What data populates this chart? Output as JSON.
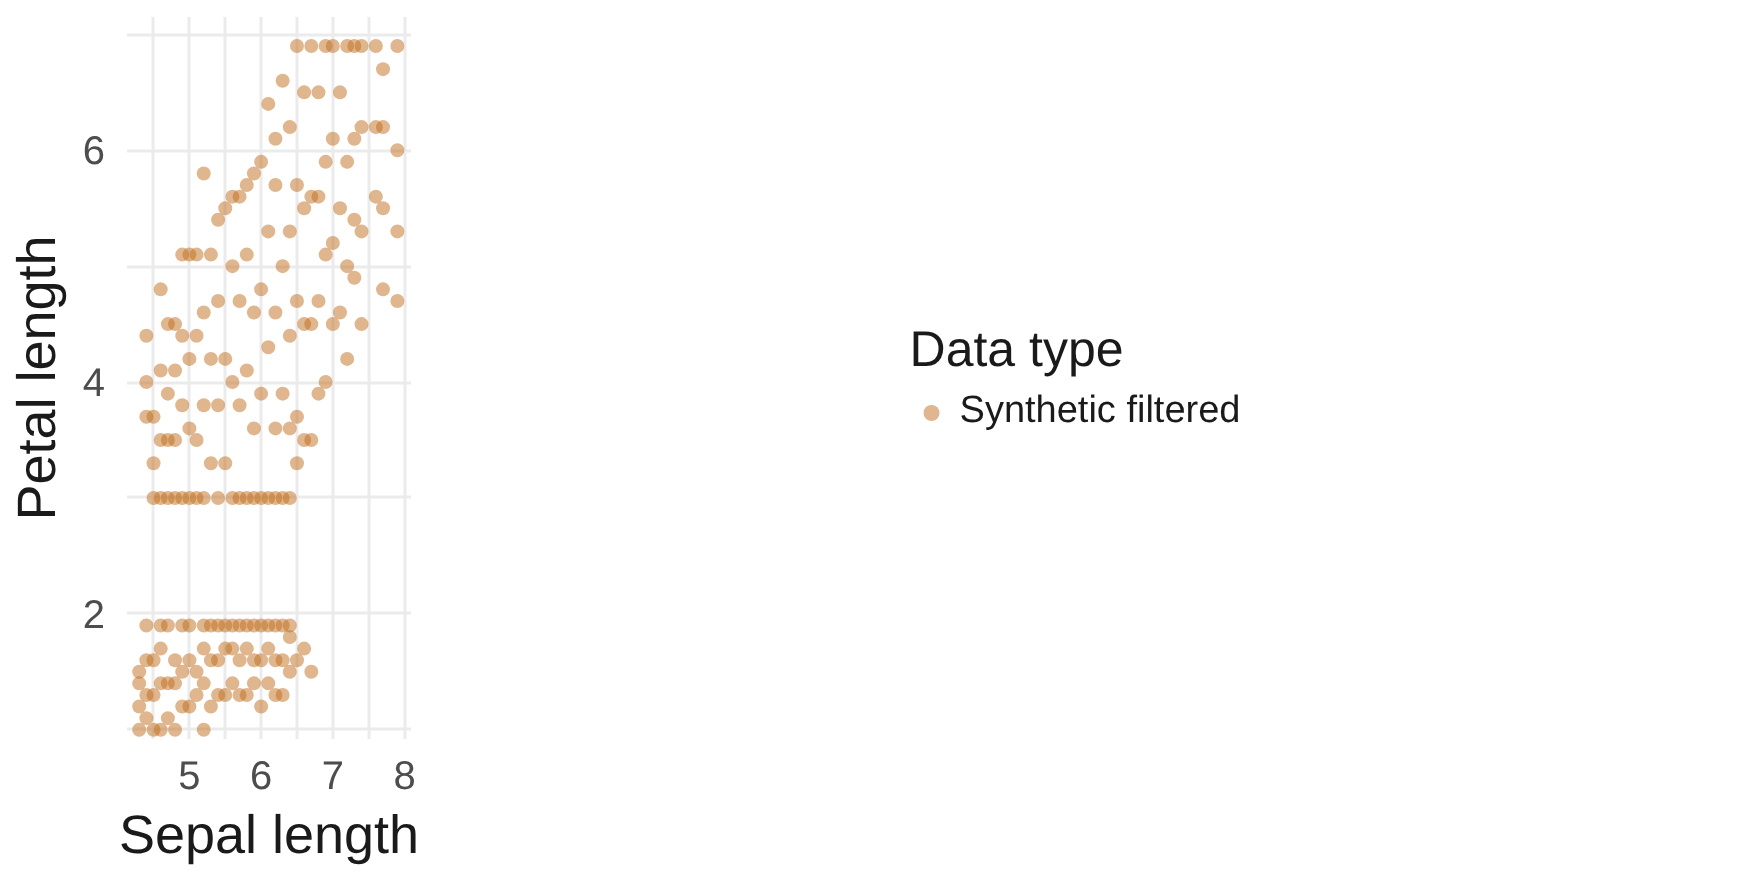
{
  "chart_data": {
    "type": "scatter",
    "xlabel": "Sepal length",
    "ylabel": "Petal length",
    "legend_title": "Data type",
    "xlim": [
      4.13,
      8.09
    ],
    "ylim": [
      0.92,
      7.15
    ],
    "xticks": [
      {
        "value": 4.5,
        "label": null
      },
      5,
      {
        "value": 5.5,
        "label": null
      },
      6,
      {
        "value": 6.5,
        "label": null
      },
      7,
      {
        "value": 7.5,
        "label": null
      },
      8
    ],
    "yticks": [
      {
        "value": 1,
        "label": null
      },
      2,
      {
        "value": 3,
        "label": null
      },
      4,
      {
        "value": 5,
        "label": null
      },
      6,
      {
        "value": 7,
        "label": null
      }
    ],
    "grid": true,
    "legend": "right",
    "marker": "circle",
    "series": [
      {
        "name": "Synthetic filtered",
        "color": "#c06e1c",
        "x": [
          4.3,
          4.3,
          4.3,
          4.3,
          4.4,
          4.4,
          4.4,
          4.4,
          4.4,
          4.4,
          4.4,
          4.5,
          4.5,
          4.5,
          4.5,
          4.5,
          4.5,
          4.6,
          4.6,
          4.6,
          4.6,
          4.6,
          4.6,
          4.6,
          4.6,
          4.7,
          4.7,
          4.7,
          4.7,
          4.7,
          4.7,
          4.7,
          4.8,
          4.8,
          4.8,
          4.8,
          4.8,
          4.8,
          4.8,
          4.9,
          4.9,
          4.9,
          4.9,
          4.9,
          4.9,
          4.9,
          5.0,
          5.0,
          5.0,
          5.0,
          5.0,
          5.0,
          5.0,
          5.1,
          5.1,
          5.1,
          5.1,
          5.1,
          5.1,
          5.2,
          5.2,
          5.2,
          5.2,
          5.2,
          5.2,
          5.2,
          5.2,
          5.3,
          5.3,
          5.3,
          5.3,
          5.3,
          5.3,
          5.4,
          5.4,
          5.4,
          5.4,
          5.4,
          5.4,
          5.4,
          5.5,
          5.5,
          5.5,
          5.5,
          5.5,
          5.5,
          5.6,
          5.6,
          5.6,
          5.6,
          5.6,
          5.6,
          5.6,
          5.7,
          5.7,
          5.7,
          5.7,
          5.7,
          5.7,
          5.7,
          5.8,
          5.8,
          5.8,
          5.8,
          5.8,
          5.8,
          5.8,
          5.9,
          5.9,
          5.9,
          5.9,
          5.9,
          5.9,
          5.9,
          6.0,
          6.0,
          6.0,
          6.0,
          6.0,
          6.0,
          6.0,
          6.1,
          6.1,
          6.1,
          6.1,
          6.1,
          6.1,
          6.1,
          6.2,
          6.2,
          6.2,
          6.2,
          6.2,
          6.2,
          6.2,
          6.2,
          6.3,
          6.3,
          6.3,
          6.3,
          6.3,
          6.3,
          6.3,
          6.4,
          6.4,
          6.4,
          6.4,
          6.4,
          6.4,
          6.4,
          6.4,
          6.5,
          6.5,
          6.5,
          6.5,
          6.5,
          6.5,
          6.6,
          6.6,
          6.6,
          6.6,
          6.6,
          6.7,
          6.7,
          6.7,
          6.7,
          6.7,
          6.8,
          6.8,
          6.8,
          6.8,
          6.9,
          6.9,
          6.9,
          6.9,
          7.0,
          7.0,
          7.0,
          7.0,
          7.1,
          7.1,
          7.1,
          7.2,
          7.2,
          7.2,
          7.2,
          7.3,
          7.3,
          7.3,
          7.3,
          7.4,
          7.4,
          7.4,
          7.4,
          7.6,
          7.6,
          7.6,
          7.7,
          7.7,
          7.7,
          7.7,
          7.9,
          7.9,
          7.9,
          7.9
        ],
        "values": [
          1.0,
          1.2,
          1.4,
          1.5,
          1.1,
          1.3,
          1.6,
          1.9,
          3.7,
          4.0,
          4.4,
          1.0,
          1.3,
          1.6,
          3.0,
          3.3,
          3.7,
          1.0,
          1.4,
          1.7,
          1.9,
          3.0,
          3.5,
          4.1,
          4.8,
          1.1,
          1.4,
          1.9,
          3.0,
          3.5,
          3.9,
          4.5,
          1.0,
          1.4,
          1.6,
          3.0,
          3.5,
          4.1,
          4.5,
          1.2,
          1.5,
          1.9,
          3.0,
          3.8,
          4.4,
          5.1,
          1.2,
          1.6,
          1.9,
          3.0,
          3.6,
          4.2,
          5.1,
          1.3,
          1.5,
          3.0,
          3.5,
          4.4,
          5.1,
          1.0,
          1.4,
          1.7,
          1.9,
          3.0,
          3.8,
          4.6,
          5.8,
          1.2,
          1.6,
          1.9,
          3.3,
          4.2,
          5.1,
          1.3,
          1.6,
          1.9,
          3.0,
          3.8,
          4.7,
          5.4,
          1.3,
          1.7,
          1.9,
          3.3,
          4.2,
          5.5,
          1.4,
          1.7,
          1.9,
          3.0,
          4.0,
          5.0,
          5.6,
          1.3,
          1.6,
          1.9,
          3.0,
          3.8,
          4.7,
          5.6,
          1.3,
          1.7,
          1.9,
          3.0,
          4.1,
          5.1,
          5.7,
          1.4,
          1.6,
          1.9,
          3.0,
          3.6,
          4.6,
          5.8,
          1.2,
          1.6,
          1.9,
          3.0,
          3.9,
          4.8,
          5.9,
          1.4,
          1.7,
          1.9,
          3.0,
          4.3,
          5.3,
          6.4,
          1.3,
          1.6,
          1.9,
          3.0,
          3.6,
          4.6,
          5.7,
          6.1,
          1.3,
          1.6,
          1.9,
          3.0,
          3.9,
          5.0,
          6.6,
          1.5,
          1.8,
          1.9,
          3.0,
          3.6,
          4.4,
          5.3,
          6.2,
          1.6,
          3.3,
          3.7,
          4.7,
          5.7,
          6.9,
          1.7,
          3.5,
          4.5,
          5.5,
          6.5,
          1.5,
          3.5,
          4.5,
          5.6,
          6.9,
          3.9,
          4.7,
          5.6,
          6.5,
          4.0,
          5.1,
          5.9,
          6.9,
          4.5,
          5.2,
          6.1,
          6.9,
          4.6,
          5.5,
          6.5,
          4.2,
          5.0,
          5.9,
          6.9,
          4.9,
          5.4,
          6.1,
          6.9,
          4.5,
          5.3,
          6.2,
          6.9,
          5.6,
          6.2,
          6.9,
          4.8,
          5.5,
          6.2,
          6.7,
          4.7,
          5.3,
          6.0,
          6.9
        ]
      }
    ]
  }
}
